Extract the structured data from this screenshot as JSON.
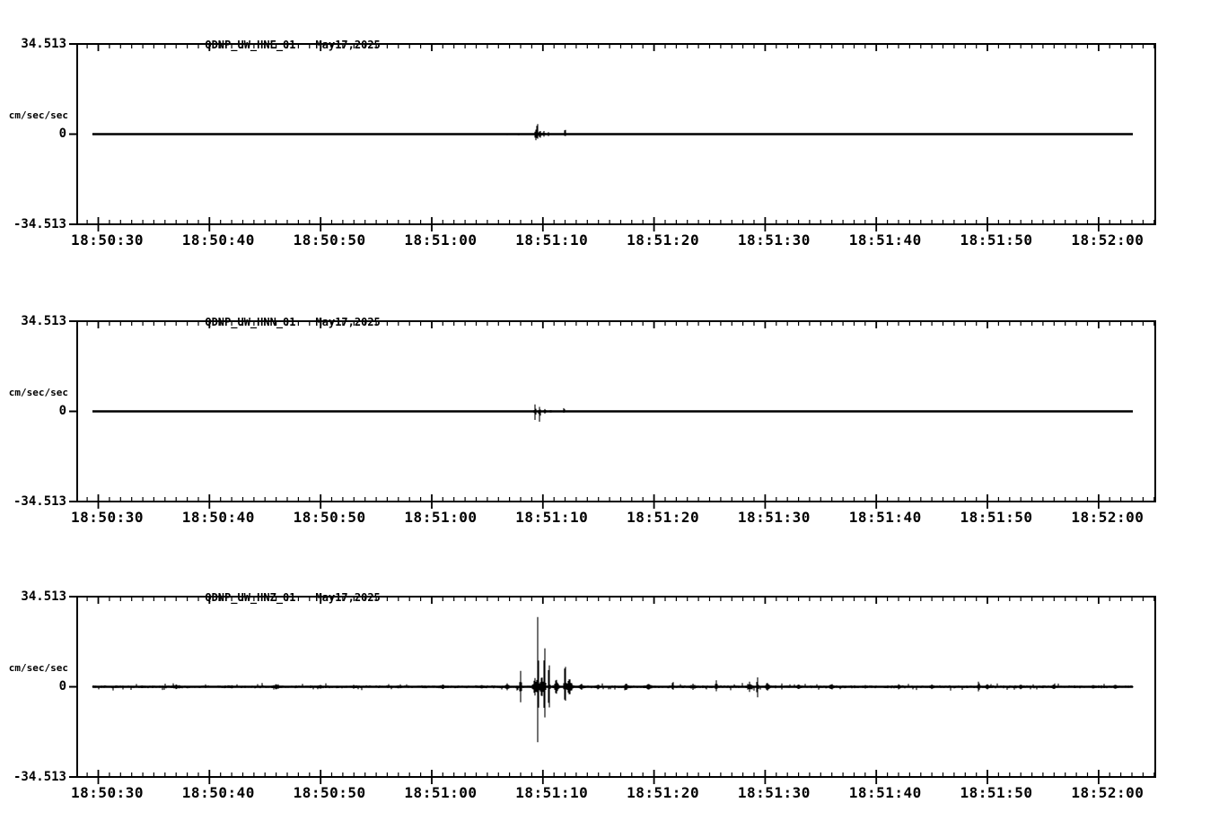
{
  "page": {
    "background": "#ffffff",
    "ink": "#000000",
    "description": "Three-channel strong-motion seismogram record, station QDNP network UW, May 17 2025, 18:50:28 - 18:52:05 UTC"
  },
  "chart_data": [
    {
      "type": "line",
      "subtype": "seismogram",
      "station": "QDNP_UW_HNE_01",
      "date": "May17,2025",
      "ylabel": "cm/sec/sec",
      "yticks": [
        "34.513",
        "0",
        "-34.513"
      ],
      "ylim": [
        -34.513,
        34.513
      ],
      "xticks": [
        "18:50:30",
        "18:50:40",
        "18:50:50",
        "18:51:00",
        "18:51:10",
        "18:51:20",
        "18:51:30",
        "18:51:40",
        "18:51:50",
        "18:52:00"
      ],
      "x_major_step_s": 10,
      "x_minor_step_s": 1,
      "x_axis_range_s": [
        -1.9,
        95.1
      ],
      "trace_range_s": [
        -0.55,
        93.1
      ],
      "baseline_value": 0,
      "grid": false,
      "legend": "none",
      "noise_amp": 0.08,
      "events": [
        {
          "t": 36.8,
          "up": 0.2,
          "down": 0.5,
          "w": 0.1
        },
        {
          "t": 37.8,
          "up": 0.4,
          "down": 0.9,
          "w": 0.12
        },
        {
          "t": 39.35,
          "up": 2.2,
          "down": 3.0,
          "w": 0.18
        },
        {
          "t": 39.5,
          "up": 5.5,
          "down": 2.5,
          "w": 0.2
        },
        {
          "t": 39.75,
          "up": 1.4,
          "down": 1.6,
          "w": 0.35
        },
        {
          "t": 40.1,
          "up": 1.2,
          "down": 1.0,
          "w": 0.3
        },
        {
          "t": 40.5,
          "up": 0.8,
          "down": 0.8,
          "w": 0.3
        },
        {
          "t": 42.0,
          "up": 2.4,
          "down": 1.1,
          "w": 0.2
        },
        {
          "t": 59.2,
          "up": 0.5,
          "down": 0.5,
          "w": 0.12
        }
      ]
    },
    {
      "type": "line",
      "subtype": "seismogram",
      "station": "QDNP_UW_HNN_01",
      "date": "May17,2025",
      "ylabel": "cm/sec/sec",
      "yticks": [
        "34.513",
        "0",
        "-34.513"
      ],
      "ylim": [
        -34.513,
        34.513
      ],
      "xticks": [
        "18:50:30",
        "18:50:40",
        "18:50:50",
        "18:51:00",
        "18:51:10",
        "18:51:20",
        "18:51:30",
        "18:51:40",
        "18:51:50",
        "18:52:00"
      ],
      "x_major_step_s": 10,
      "x_minor_step_s": 1,
      "x_axis_range_s": [
        -1.9,
        95.1
      ],
      "trace_range_s": [
        -0.55,
        93.1
      ],
      "baseline_value": 0,
      "grid": false,
      "legend": "none",
      "noise_amp": 0.08,
      "events": [
        {
          "t": 39.3,
          "up": 2.9,
          "down": 3.6,
          "w": 0.2
        },
        {
          "t": 39.7,
          "up": 1.8,
          "down": 4.2,
          "w": 0.2
        },
        {
          "t": 40.2,
          "up": 1.0,
          "down": 1.0,
          "w": 0.35
        },
        {
          "t": 40.7,
          "up": 0.6,
          "down": 0.6,
          "w": 0.25
        },
        {
          "t": 41.9,
          "up": 1.6,
          "down": 0.7,
          "w": 0.2
        }
      ]
    },
    {
      "type": "line",
      "subtype": "seismogram",
      "station": "QDNP_UW_HNZ_01",
      "date": "May17,2025",
      "ylabel": "cm/sec/sec",
      "yticks": [
        "34.513",
        "0",
        "-34.513"
      ],
      "ylim": [
        -34.513,
        34.513
      ],
      "xticks": [
        "18:50:30",
        "18:50:40",
        "18:50:50",
        "18:51:00",
        "18:51:10",
        "18:51:20",
        "18:51:30",
        "18:51:40",
        "18:51:50",
        "18:52:00"
      ],
      "x_major_step_s": 10,
      "x_minor_step_s": 1,
      "x_axis_range_s": [
        -1.9,
        95.1
      ],
      "trace_range_s": [
        -0.55,
        93.1
      ],
      "baseline_value": 0,
      "grid": false,
      "legend": "none",
      "noise_amp": 0.4,
      "events": [
        {
          "t": 4.0,
          "up": 0.5,
          "down": 0.5,
          "w": 2.0
        },
        {
          "t": 7.0,
          "up": 0.9,
          "down": 0.9,
          "w": 1.5
        },
        {
          "t": 12.0,
          "up": 0.6,
          "down": 0.6,
          "w": 2.0
        },
        {
          "t": 16.0,
          "up": 1.0,
          "down": 1.0,
          "w": 1.5
        },
        {
          "t": 20.0,
          "up": 0.7,
          "down": 0.7,
          "w": 1.5
        },
        {
          "t": 23.0,
          "up": 0.8,
          "down": 0.8,
          "w": 1.0
        },
        {
          "t": 27.0,
          "up": 0.6,
          "down": 0.6,
          "w": 1.5
        },
        {
          "t": 31.0,
          "up": 0.9,
          "down": 0.9,
          "w": 1.2
        },
        {
          "t": 34.5,
          "up": 0.7,
          "down": 0.7,
          "w": 1.0
        },
        {
          "t": 36.8,
          "up": 1.4,
          "down": 1.4,
          "w": 0.6
        },
        {
          "t": 38.0,
          "up": 6.2,
          "down": 6.0,
          "w": 0.18
        },
        {
          "t": 39.3,
          "up": 3.5,
          "down": 3.5,
          "w": 0.5
        },
        {
          "t": 39.55,
          "up": 34.0,
          "down": 27.0,
          "w": 0.15
        },
        {
          "t": 39.9,
          "up": 4.0,
          "down": 4.0,
          "w": 0.6
        },
        {
          "t": 40.15,
          "up": 22.0,
          "down": 17.5,
          "w": 0.16
        },
        {
          "t": 40.55,
          "up": 13.0,
          "down": 12.5,
          "w": 0.16
        },
        {
          "t": 41.2,
          "up": 3.0,
          "down": 3.0,
          "w": 0.5
        },
        {
          "t": 42.0,
          "up": 11.5,
          "down": 8.0,
          "w": 0.2
        },
        {
          "t": 42.4,
          "up": 3.2,
          "down": 3.2,
          "w": 0.7
        },
        {
          "t": 43.5,
          "up": 1.2,
          "down": 1.2,
          "w": 0.8
        },
        {
          "t": 45.0,
          "up": 0.8,
          "down": 0.8,
          "w": 1.0
        },
        {
          "t": 47.5,
          "up": 1.3,
          "down": 1.3,
          "w": 0.8
        },
        {
          "t": 49.5,
          "up": 1.1,
          "down": 1.1,
          "w": 1.2
        },
        {
          "t": 51.7,
          "up": 2.3,
          "down": 1.4,
          "w": 0.25
        },
        {
          "t": 53.5,
          "up": 1.2,
          "down": 1.2,
          "w": 0.9
        },
        {
          "t": 55.6,
          "up": 2.6,
          "down": 1.8,
          "w": 0.25
        },
        {
          "t": 58.6,
          "up": 2.0,
          "down": 2.0,
          "w": 0.7
        },
        {
          "t": 59.3,
          "up": 4.5,
          "down": 5.0,
          "w": 0.2
        },
        {
          "t": 60.2,
          "up": 1.5,
          "down": 1.5,
          "w": 0.6
        },
        {
          "t": 63.0,
          "up": 0.9,
          "down": 0.9,
          "w": 1.0
        },
        {
          "t": 66.0,
          "up": 1.1,
          "down": 1.1,
          "w": 0.8
        },
        {
          "t": 69.0,
          "up": 0.7,
          "down": 0.7,
          "w": 1.0
        },
        {
          "t": 72.0,
          "up": 1.0,
          "down": 1.0,
          "w": 0.8
        },
        {
          "t": 75.0,
          "up": 0.9,
          "down": 0.9,
          "w": 0.8
        },
        {
          "t": 79.2,
          "up": 2.1,
          "down": 1.9,
          "w": 0.3
        },
        {
          "t": 80.0,
          "up": 1.0,
          "down": 1.0,
          "w": 0.8
        },
        {
          "t": 83.0,
          "up": 0.8,
          "down": 0.8,
          "w": 1.0
        },
        {
          "t": 86.0,
          "up": 0.9,
          "down": 0.9,
          "w": 0.8
        },
        {
          "t": 89.5,
          "up": 0.7,
          "down": 0.7,
          "w": 1.0
        },
        {
          "t": 91.5,
          "up": 0.8,
          "down": 0.8,
          "w": 0.8
        }
      ]
    }
  ]
}
